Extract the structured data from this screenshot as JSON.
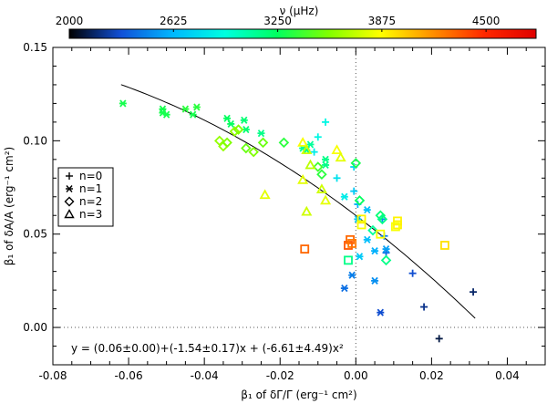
{
  "chart_data": {
    "type": "scatter",
    "title": "",
    "xlabel": "β₁ of δΓ/Γ (erg⁻¹ cm²)",
    "ylabel": "β₁ of δA/A (erg⁻¹ cm²)",
    "xlim": [
      -0.08,
      0.05
    ],
    "ylim": [
      -0.02,
      0.15
    ],
    "xticks": [
      -0.08,
      -0.06,
      -0.04,
      -0.02,
      0.0,
      0.02,
      0.04
    ],
    "xtick_labels": [
      "-0.08",
      "-0.06",
      "-0.04",
      "-0.02",
      "0.00",
      "0.02",
      "0.04"
    ],
    "yticks": [
      0.0,
      0.05,
      0.1,
      0.15
    ],
    "ytick_labels": [
      "0.00",
      "0.05",
      "0.10",
      "0.15"
    ],
    "colorbar": {
      "label": "ν (μHz)",
      "min": 2000,
      "max": 4800,
      "ticks": [
        2000,
        2625,
        3250,
        3875,
        4500
      ],
      "tick_labels": [
        "2000",
        "2625",
        "3250",
        "3875",
        "4500"
      ],
      "stops": [
        "#000000",
        "#1050d8",
        "#00b8ff",
        "#00ffe0",
        "#00ff60",
        "#80ff00",
        "#ffff00",
        "#ff9000",
        "#ff2800",
        "#e00000"
      ]
    },
    "legend": {
      "placement": "left",
      "entries": [
        {
          "label": "n=0",
          "marker": "plus"
        },
        {
          "label": "n=1",
          "marker": "asterisk"
        },
        {
          "label": "n=2",
          "marker": "diamond"
        },
        {
          "label": "n=3",
          "marker": "triangle"
        }
      ]
    },
    "reference_lines": {
      "x": 0.0,
      "y": 0.0
    },
    "fit": {
      "equation": "y = (0.06±0.00)+(-1.54±0.17)x + (-6.61±4.49)x²",
      "c0": 0.06,
      "c1": -1.54,
      "c2": -6.61,
      "x_range": [
        -0.062,
        0.0315
      ]
    },
    "series": [
      {
        "marker": "plus",
        "points": [
          {
            "x": -0.008,
            "y": 0.11,
            "nu": 2900
          },
          {
            "x": -0.01,
            "y": 0.102,
            "nu": 2900
          },
          {
            "x": -0.011,
            "y": 0.094,
            "nu": 2850
          },
          {
            "x": -0.005,
            "y": 0.08,
            "nu": 2800
          },
          {
            "x": -0.0005,
            "y": 0.086,
            "nu": 2750
          },
          {
            "x": -0.0005,
            "y": 0.073,
            "nu": 2700
          },
          {
            "x": 0.0005,
            "y": 0.066,
            "nu": 2600
          },
          {
            "x": 0.007,
            "y": 0.058,
            "nu": 2500
          },
          {
            "x": 0.0075,
            "y": 0.049,
            "nu": 2450
          },
          {
            "x": 0.008,
            "y": 0.04,
            "nu": 2400
          },
          {
            "x": 0.015,
            "y": 0.029,
            "nu": 2300
          },
          {
            "x": 0.018,
            "y": 0.011,
            "nu": 2200
          },
          {
            "x": 0.022,
            "y": -0.006,
            "nu": 2100
          },
          {
            "x": 0.031,
            "y": 0.019,
            "nu": 2150
          }
        ]
      },
      {
        "marker": "asterisk",
        "points": [
          {
            "x": -0.0615,
            "y": 0.12,
            "nu": 3300
          },
          {
            "x": -0.051,
            "y": 0.117,
            "nu": 3300
          },
          {
            "x": -0.051,
            "y": 0.115,
            "nu": 3300
          },
          {
            "x": -0.05,
            "y": 0.114,
            "nu": 3300
          },
          {
            "x": -0.045,
            "y": 0.117,
            "nu": 3350
          },
          {
            "x": -0.043,
            "y": 0.114,
            "nu": 3300
          },
          {
            "x": -0.042,
            "y": 0.118,
            "nu": 3350
          },
          {
            "x": -0.034,
            "y": 0.112,
            "nu": 3250
          },
          {
            "x": -0.033,
            "y": 0.109,
            "nu": 3250
          },
          {
            "x": -0.0295,
            "y": 0.111,
            "nu": 3200
          },
          {
            "x": -0.029,
            "y": 0.106,
            "nu": 3200
          },
          {
            "x": -0.025,
            "y": 0.104,
            "nu": 3150
          },
          {
            "x": -0.014,
            "y": 0.096,
            "nu": 3100
          },
          {
            "x": -0.013,
            "y": 0.095,
            "nu": 3150
          },
          {
            "x": -0.012,
            "y": 0.098,
            "nu": 3100
          },
          {
            "x": -0.008,
            "y": 0.09,
            "nu": 3150
          },
          {
            "x": -0.008,
            "y": 0.087,
            "nu": 3150
          },
          {
            "x": -0.003,
            "y": 0.07,
            "nu": 2850
          },
          {
            "x": 0.0005,
            "y": 0.058,
            "nu": 2700
          },
          {
            "x": 0.003,
            "y": 0.063,
            "nu": 2650
          },
          {
            "x": 0.003,
            "y": 0.047,
            "nu": 2650
          },
          {
            "x": 0.005,
            "y": 0.041,
            "nu": 2600
          },
          {
            "x": 0.001,
            "y": 0.038,
            "nu": 2700
          },
          {
            "x": 0.008,
            "y": 0.042,
            "nu": 2550
          },
          {
            "x": 0.005,
            "y": 0.025,
            "nu": 2500
          },
          {
            "x": -0.001,
            "y": 0.028,
            "nu": 2450
          },
          {
            "x": -0.003,
            "y": 0.021,
            "nu": 2400
          },
          {
            "x": 0.0065,
            "y": 0.008,
            "nu": 2300
          }
        ]
      },
      {
        "marker": "diamond",
        "points": [
          {
            "x": -0.036,
            "y": 0.1,
            "nu": 3600
          },
          {
            "x": -0.035,
            "y": 0.097,
            "nu": 3600
          },
          {
            "x": -0.034,
            "y": 0.099,
            "nu": 3550
          },
          {
            "x": -0.032,
            "y": 0.105,
            "nu": 3600
          },
          {
            "x": -0.031,
            "y": 0.106,
            "nu": 3550
          },
          {
            "x": -0.029,
            "y": 0.096,
            "nu": 3500
          },
          {
            "x": -0.027,
            "y": 0.094,
            "nu": 3550
          },
          {
            "x": -0.0245,
            "y": 0.099,
            "nu": 3500
          },
          {
            "x": -0.019,
            "y": 0.099,
            "nu": 3350
          },
          {
            "x": -0.01,
            "y": 0.086,
            "nu": 3400
          },
          {
            "x": -0.009,
            "y": 0.082,
            "nu": 3350
          },
          {
            "x": 0.0,
            "y": 0.088,
            "nu": 3300
          },
          {
            "x": 0.001,
            "y": 0.068,
            "nu": 3250
          },
          {
            "x": 0.0065,
            "y": 0.06,
            "nu": 3200
          },
          {
            "x": 0.007,
            "y": 0.058,
            "nu": 3150
          },
          {
            "x": 0.008,
            "y": 0.036,
            "nu": 3150
          },
          {
            "x": 0.0045,
            "y": 0.052,
            "nu": 3100
          }
        ]
      },
      {
        "marker": "triangle",
        "points": [
          {
            "x": -0.014,
            "y": 0.099,
            "nu": 3850
          },
          {
            "x": -0.013,
            "y": 0.095,
            "nu": 3750
          },
          {
            "x": -0.014,
            "y": 0.079,
            "nu": 3800
          },
          {
            "x": -0.012,
            "y": 0.087,
            "nu": 3700
          },
          {
            "x": -0.009,
            "y": 0.074,
            "nu": 3750
          },
          {
            "x": -0.008,
            "y": 0.068,
            "nu": 3800
          },
          {
            "x": -0.005,
            "y": 0.095,
            "nu": 3850
          },
          {
            "x": -0.004,
            "y": 0.091,
            "nu": 3800
          },
          {
            "x": -0.013,
            "y": 0.062,
            "nu": 3750
          },
          {
            "x": -0.024,
            "y": 0.071,
            "nu": 3800
          }
        ]
      },
      {
        "marker": "square",
        "points": [
          {
            "x": -0.0135,
            "y": 0.042,
            "nu": 4300
          },
          {
            "x": -0.002,
            "y": 0.044,
            "nu": 4350
          },
          {
            "x": -0.0015,
            "y": 0.047,
            "nu": 4300
          },
          {
            "x": -0.001,
            "y": 0.045,
            "nu": 4250
          },
          {
            "x": -0.002,
            "y": 0.036,
            "nu": 3150
          },
          {
            "x": 0.0015,
            "y": 0.058,
            "nu": 3900
          },
          {
            "x": 0.0015,
            "y": 0.055,
            "nu": 3850
          },
          {
            "x": 0.0065,
            "y": 0.05,
            "nu": 3850
          },
          {
            "x": 0.011,
            "y": 0.057,
            "nu": 3900
          },
          {
            "x": 0.011,
            "y": 0.055,
            "nu": 3900
          },
          {
            "x": 0.0105,
            "y": 0.054,
            "nu": 3850
          },
          {
            "x": 0.0235,
            "y": 0.044,
            "nu": 3950
          }
        ]
      }
    ]
  }
}
